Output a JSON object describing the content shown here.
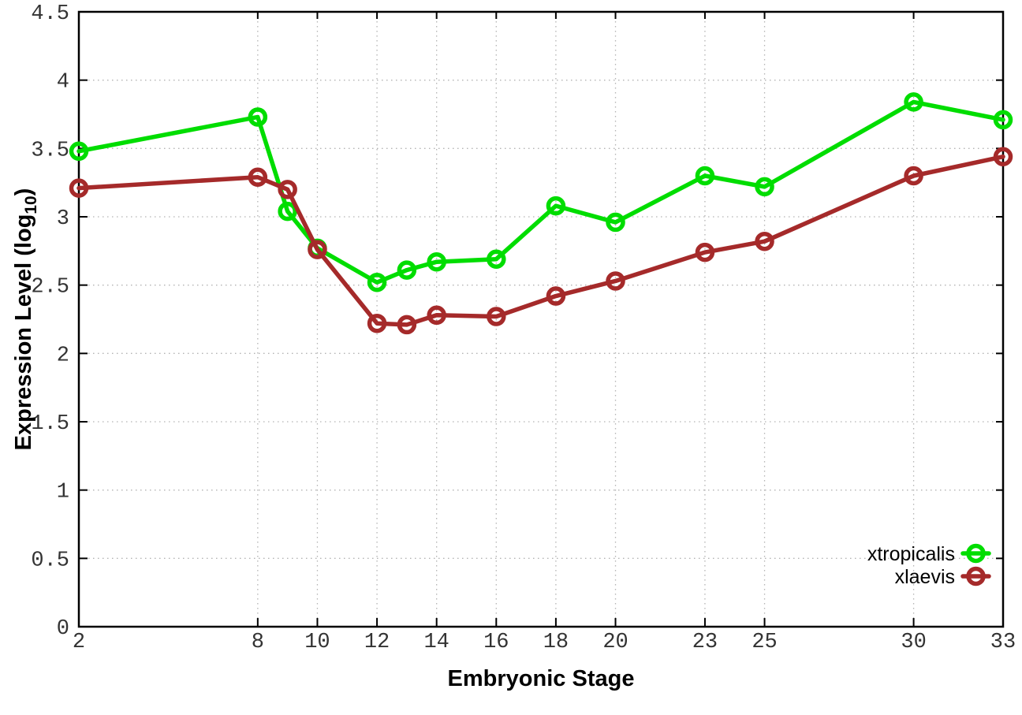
{
  "chart_data": {
    "type": "line",
    "title": "",
    "xlabel": "Embryonic Stage",
    "ylabel": "Expression Level (log10)",
    "ylabel_parts": {
      "prefix": "Expression Level (log",
      "sub": "10",
      "suffix": ")"
    },
    "xlim": [
      2,
      33
    ],
    "ylim": [
      0,
      4.5
    ],
    "grid": true,
    "legend_position": "bottom-right",
    "x_ticks": [
      2,
      8,
      10,
      12,
      14,
      16,
      18,
      20,
      23,
      25,
      30,
      33
    ],
    "x_tick_labels": [
      "2",
      "8",
      "10",
      "12",
      "14",
      "16",
      "18",
      "20",
      "23",
      "25",
      "30",
      "33"
    ],
    "y_ticks": [
      0,
      0.5,
      1,
      1.5,
      2,
      2.5,
      3,
      3.5,
      4,
      4.5
    ],
    "y_tick_labels": [
      "0",
      "0.5",
      "1",
      "1.5",
      "2",
      "2.5",
      "3",
      "3.5",
      "4",
      "4.5"
    ],
    "x": [
      2,
      8,
      9,
      10,
      12,
      13,
      14,
      16,
      18,
      20,
      23,
      25,
      30,
      33
    ],
    "series": [
      {
        "name": "xtropicalis",
        "color": "#00dd00",
        "values": [
          3.48,
          3.73,
          3.04,
          2.77,
          2.52,
          2.61,
          2.67,
          2.69,
          3.08,
          2.96,
          3.3,
          3.22,
          3.84,
          3.71
        ]
      },
      {
        "name": "xlaevis",
        "color": "#a52a2a",
        "values": [
          3.21,
          3.29,
          3.2,
          2.76,
          2.22,
          2.21,
          2.28,
          2.27,
          2.42,
          2.53,
          2.74,
          2.82,
          3.3,
          3.44
        ]
      }
    ],
    "colors": {
      "grid": "#b3b3b3",
      "axis": "#000000",
      "tick_label": "#333333",
      "legend_text": "#000000"
    }
  }
}
